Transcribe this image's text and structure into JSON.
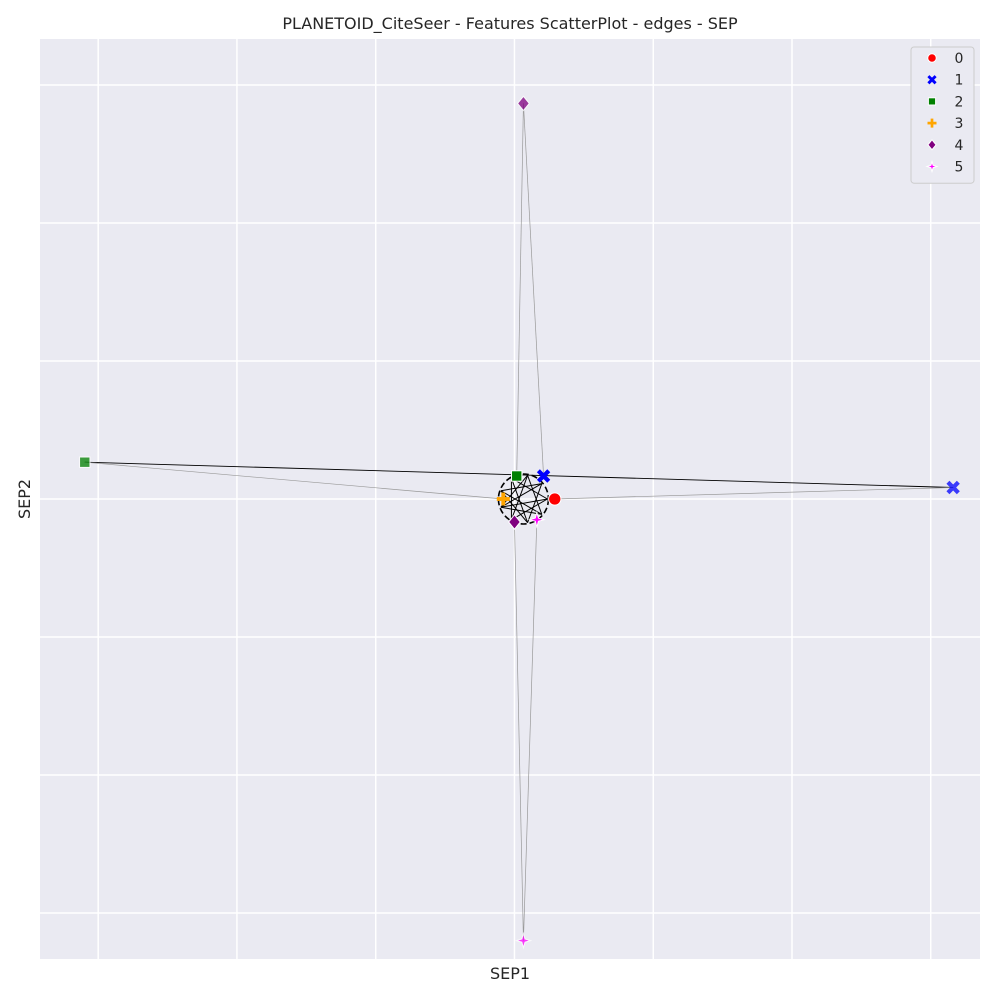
{
  "chart_data": {
    "type": "scatter",
    "title": "PLANETOID_CiteSeer - Features ScatterPlot - edges - SEP",
    "xlabel": "SEP1",
    "ylabel": "SEP2",
    "xlim": [
      -1.08,
      1.02
    ],
    "ylim": [
      -1.0,
      1.0
    ],
    "x_gridlines": [
      -0.95,
      -0.64,
      -0.33,
      -0.02,
      0.29,
      0.6,
      0.91
    ],
    "y_gridlines": [
      -0.9,
      -0.6,
      -0.3,
      0.0,
      0.3,
      0.6,
      0.9
    ],
    "tick_labels_visible": false,
    "grid": true,
    "background": "#eaeaf2",
    "legend_position": "top-right",
    "series": [
      {
        "name": "0",
        "marker": "circle",
        "color": "#ff0000",
        "points": [
          {
            "x": 0.07,
            "y": 0.0
          }
        ]
      },
      {
        "name": "1",
        "marker": "x",
        "color": "#0000ff",
        "points": [
          {
            "x": 0.045,
            "y": 0.05
          },
          {
            "x": 0.96,
            "y": 0.025
          }
        ]
      },
      {
        "name": "2",
        "marker": "square",
        "color": "#008000",
        "points": [
          {
            "x": -0.015,
            "y": 0.05
          },
          {
            "x": -0.98,
            "y": 0.08
          }
        ]
      },
      {
        "name": "3",
        "marker": "plus",
        "color": "#ffa500",
        "points": [
          {
            "x": -0.045,
            "y": 0.0
          }
        ]
      },
      {
        "name": "4",
        "marker": "diamond",
        "color": "#800080",
        "points": [
          {
            "x": -0.02,
            "y": -0.05
          },
          {
            "x": 0.0,
            "y": 0.86
          }
        ]
      },
      {
        "name": "5",
        "marker": "star",
        "color": "#ff00ff",
        "points": [
          {
            "x": 0.03,
            "y": -0.045
          },
          {
            "x": 0.0,
            "y": -0.96
          }
        ]
      }
    ],
    "edges_center": [
      0.0,
      0.0
    ],
    "edges": [
      {
        "from": [
          -0.98,
          0.08
        ],
        "to": [
          0.96,
          0.025
        ],
        "color": "#000000"
      },
      {
        "from": [
          -0.98,
          0.08
        ],
        "to": [
          -0.045,
          0.0
        ],
        "color": "#999999"
      },
      {
        "from": [
          0.96,
          0.025
        ],
        "to": [
          0.07,
          0.0
        ],
        "color": "#999999"
      },
      {
        "from": [
          0.0,
          0.86
        ],
        "to": [
          -0.015,
          0.05
        ],
        "color": "#999999"
      },
      {
        "from": [
          0.0,
          0.86
        ],
        "to": [
          0.045,
          0.05
        ],
        "color": "#999999"
      },
      {
        "from": [
          0.0,
          -0.96
        ],
        "to": [
          -0.02,
          -0.05
        ],
        "color": "#999999"
      },
      {
        "from": [
          0.0,
          -0.96
        ],
        "to": [
          0.03,
          -0.045
        ],
        "color": "#999999"
      }
    ]
  }
}
